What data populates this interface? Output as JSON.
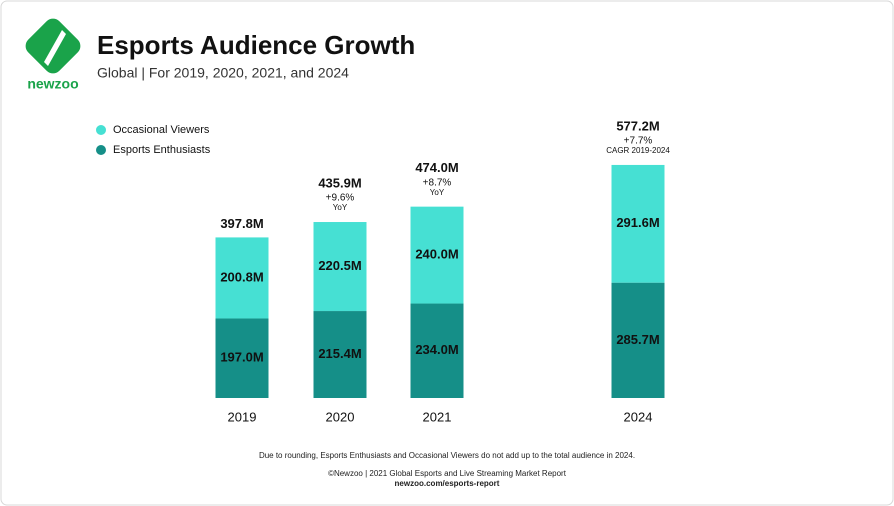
{
  "logo_text": "newzoo",
  "chart_data": {
    "type": "stacked-bar",
    "title": "Esports Audience Growth",
    "subtitle": "Global | For 2019, 2020, 2021, and 2024",
    "categories": [
      "2019",
      "2020",
      "2021",
      "2024"
    ],
    "series": [
      {
        "name": "Esports Enthusiasts",
        "color": "#158f88",
        "values": [
          197.0,
          215.4,
          234.0,
          285.7
        ],
        "value_labels": [
          "197.0M",
          "215.4M",
          "234.0M",
          "285.7M"
        ]
      },
      {
        "name": "Occasional Viewers",
        "color": "#46e0d3",
        "values": [
          200.8,
          220.5,
          240.0,
          291.6
        ],
        "value_labels": [
          "200.8M",
          "220.5M",
          "240.0M",
          "291.6M"
        ]
      }
    ],
    "totals": {
      "values": [
        397.8,
        435.9,
        474.0,
        577.2
      ],
      "value_labels": [
        "397.8M",
        "435.9M",
        "474.0M",
        "577.2M"
      ]
    },
    "growth": [
      null,
      "+9.6%",
      "+8.7%",
      "+7.7%"
    ],
    "growth_note": [
      null,
      "YoY",
      "YoY",
      "CAGR 2019-2024"
    ],
    "legend_order": [
      1,
      0
    ],
    "footnote": "Due to rounding, Esports Enthusiasts and Occasional Viewers do not add up to the total audience in 2024.",
    "source": "©Newzoo | 2021 Global Esports and Live Streaming Market Report",
    "url": "newzoo.com/esports-report"
  }
}
